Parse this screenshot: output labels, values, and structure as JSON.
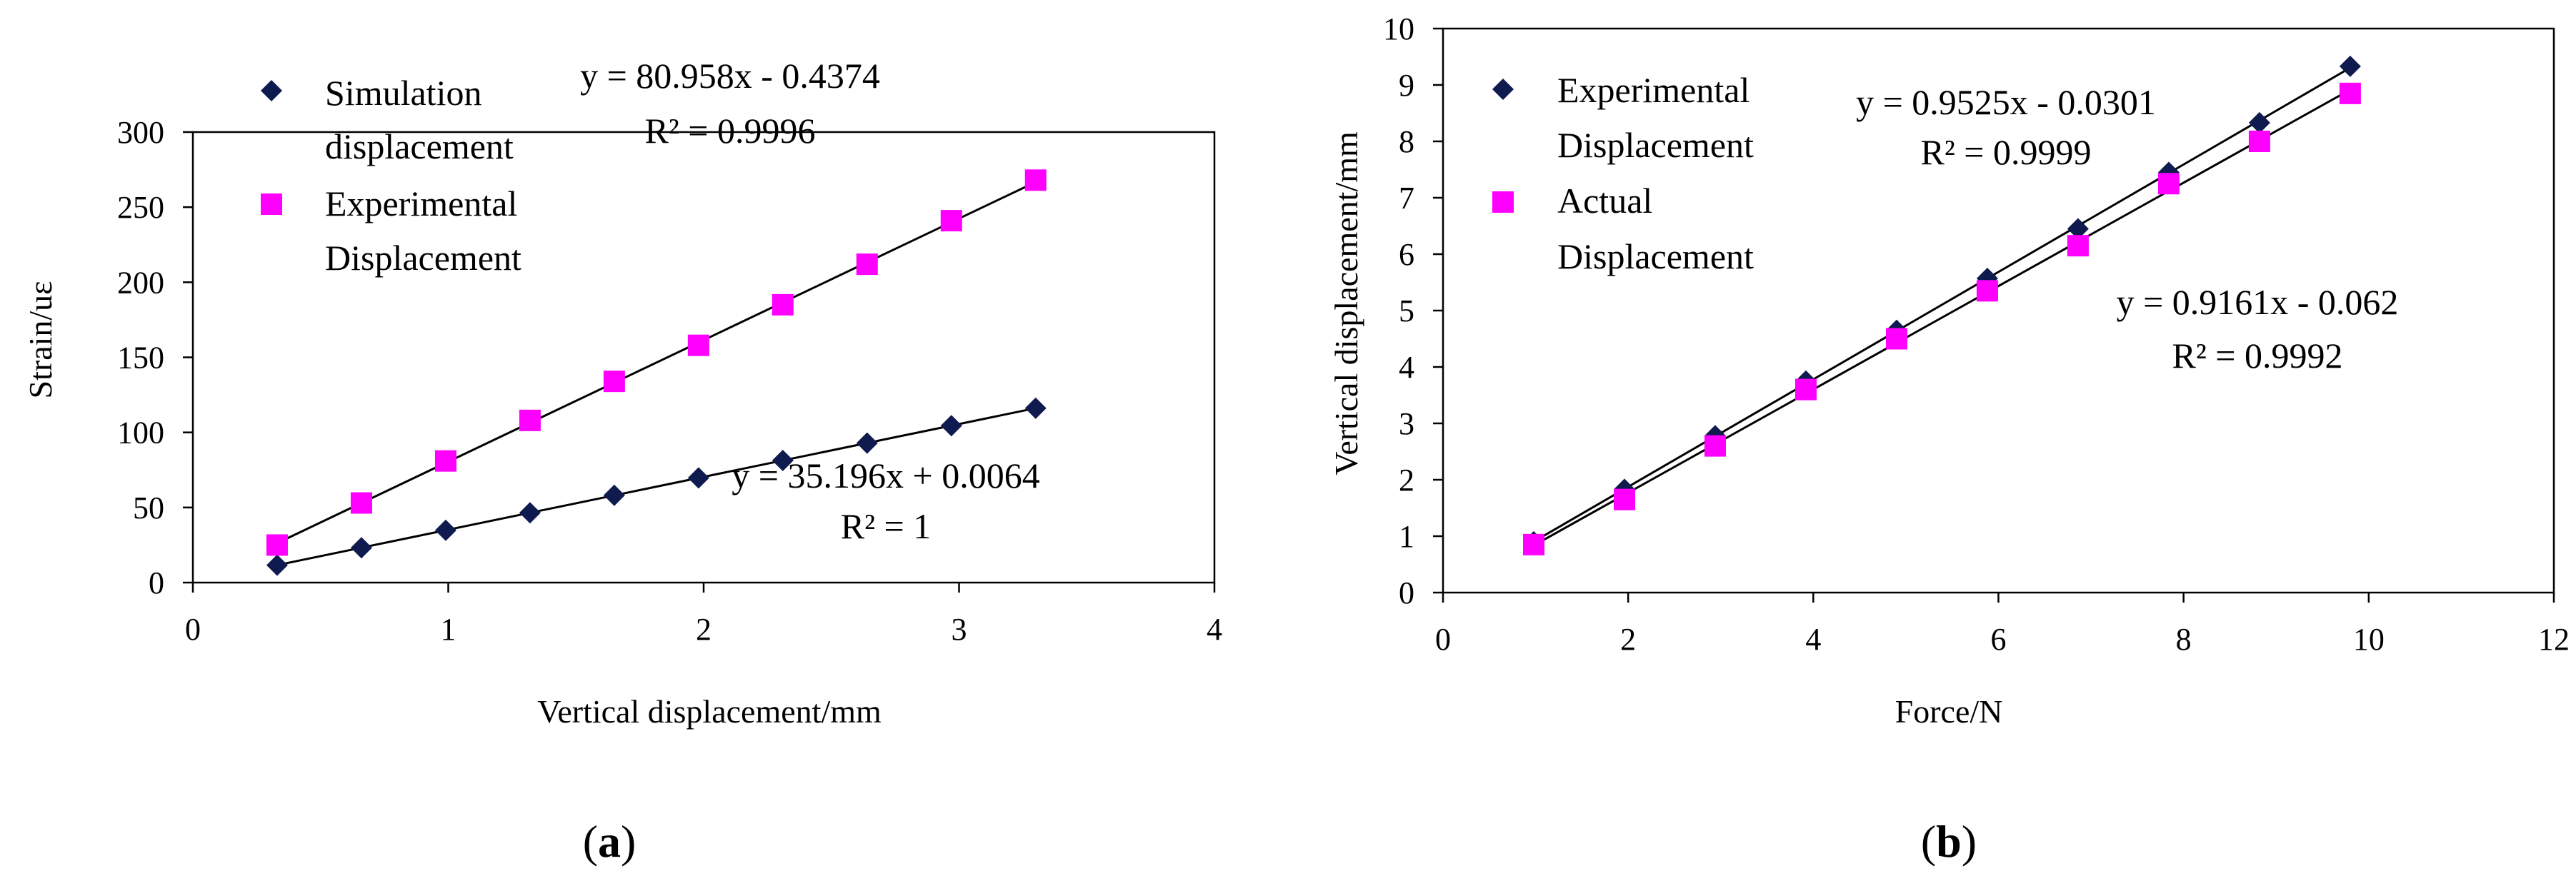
{
  "colors": {
    "series_diamond": "#0f1a4f",
    "series_square": "#ff00ff",
    "axis": "#000000"
  },
  "chart_data": [
    {
      "panel_label": "a",
      "type": "scatter",
      "title": "",
      "xlabel": "Vertical displacement/mm",
      "ylabel": "Strain/uε",
      "xlim": [
        0,
        4
      ],
      "ylim": [
        0,
        300
      ],
      "xticks": [
        0,
        1,
        2,
        3,
        4
      ],
      "yticks": [
        0,
        50,
        100,
        150,
        200,
        250,
        300
      ],
      "xtick_labels": [
        "0",
        "1",
        "2",
        "3",
        "4"
      ],
      "ytick_labels": [
        "0",
        "50",
        "100",
        "150",
        "200",
        "250",
        "300"
      ],
      "legend": [
        "Simulation",
        "displacement",
        "Experimental",
        "Displacement"
      ],
      "legend_position": "top-left",
      "series": [
        {
          "name": "Simulation displacement",
          "marker": "diamond",
          "x": [
            0.33,
            0.66,
            0.99,
            1.32,
            1.65,
            1.98,
            2.31,
            2.64,
            2.97,
            3.3
          ],
          "y": [
            11.6,
            23.2,
            34.8,
            46.5,
            58.1,
            69.7,
            81.3,
            92.9,
            104.5,
            116.1
          ],
          "trendline": {
            "slope": 35.196,
            "intercept": 0.0064,
            "equation": "y = 35.196x + 0.0064",
            "r2_label": "R² = 1"
          }
        },
        {
          "name": "Experimental Displacement",
          "marker": "square",
          "x": [
            0.33,
            0.66,
            0.99,
            1.32,
            1.65,
            1.98,
            2.31,
            2.64,
            2.97,
            3.3
          ],
          "y": [
            25,
            53,
            81,
            108,
            134,
            158,
            185,
            212,
            241,
            268
          ],
          "trendline": {
            "slope": 80.958,
            "intercept": -0.4374,
            "equation": "y = 80.958x - 0.4374",
            "r2_label": "R² = 0.9996"
          }
        }
      ]
    },
    {
      "panel_label": "b",
      "type": "scatter",
      "title": "",
      "xlabel": "Force/N",
      "ylabel": "Vertical displacement/mm",
      "xlim": [
        0,
        12
      ],
      "ylim": [
        0,
        10
      ],
      "xticks": [
        0,
        2,
        4,
        6,
        8,
        10,
        12
      ],
      "yticks": [
        0,
        1,
        2,
        3,
        4,
        5,
        6,
        7,
        8,
        9,
        10
      ],
      "xtick_labels": [
        "0",
        "2",
        "4",
        "6",
        "8",
        "10",
        "12"
      ],
      "ytick_labels": [
        "0",
        "1",
        "2",
        "3",
        "4",
        "5",
        "6",
        "7",
        "8",
        "9",
        "10"
      ],
      "legend": [
        "Experimental",
        "Displacement",
        "Actual",
        "Displacement"
      ],
      "legend_position": "top-left",
      "series": [
        {
          "name": "Experimental Displacement",
          "marker": "diamond",
          "x": [
            0.98,
            1.96,
            2.94,
            3.92,
            4.9,
            5.88,
            6.86,
            7.84,
            8.82,
            9.8
          ],
          "y": [
            0.9,
            1.83,
            2.78,
            3.75,
            4.65,
            5.57,
            6.45,
            7.45,
            8.33,
            9.33
          ],
          "trendline": {
            "slope": 0.9525,
            "intercept": -0.0301,
            "equation": "y = 0.9525x - 0.0301",
            "r2_label": "R² = 0.9999"
          }
        },
        {
          "name": "Actual Displacement",
          "marker": "square",
          "x": [
            0.98,
            1.96,
            2.94,
            3.92,
            4.9,
            5.88,
            6.86,
            7.84,
            8.82,
            9.8
          ],
          "y": [
            0.85,
            1.65,
            2.6,
            3.6,
            4.5,
            5.35,
            6.15,
            7.25,
            8.0,
            8.85
          ],
          "trendline": {
            "slope": 0.9161,
            "intercept": -0.062,
            "equation": "y = 0.9161x - 0.062",
            "r2_label": "R² = 0.9992"
          }
        }
      ]
    }
  ]
}
